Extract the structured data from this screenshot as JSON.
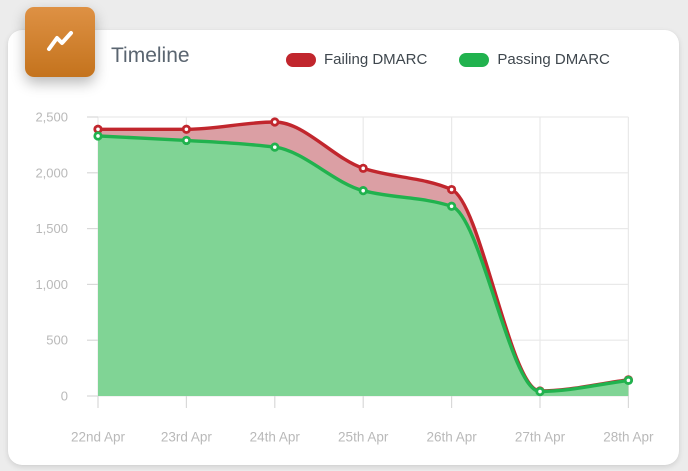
{
  "header": {
    "icon": "trend-line-icon",
    "icon_color_top": "#DE9144",
    "icon_color_bottom": "#C4731D"
  },
  "chart_data": {
    "type": "area",
    "title": "Timeline",
    "categories": [
      "22nd Apr",
      "23rd Apr",
      "24th Apr",
      "25th Apr",
      "26th Apr",
      "27th Apr",
      "28th Apr"
    ],
    "series": [
      {
        "name": "Failing DMARC",
        "color": "#C1262D",
        "fill": "#DB9FA4",
        "values": [
          2390,
          2390,
          2455,
          2040,
          1850,
          45,
          145
        ]
      },
      {
        "name": "Passing DMARC",
        "color": "#21B24E",
        "fill": "#80D495",
        "values": [
          2330,
          2290,
          2230,
          1840,
          1700,
          40,
          140
        ]
      }
    ],
    "xlabel": "",
    "ylabel": "",
    "ylim": [
      0,
      2500
    ],
    "y_ticks": [
      0,
      500,
      1000,
      1500,
      2000,
      2500
    ],
    "y_tick_labels": [
      "0",
      "500",
      "1,000",
      "1,500",
      "2,000",
      "2,500"
    ],
    "grid": true,
    "legend_position": "top",
    "curve": "smooth-monotone",
    "point_style": "circle-with-white-center"
  }
}
